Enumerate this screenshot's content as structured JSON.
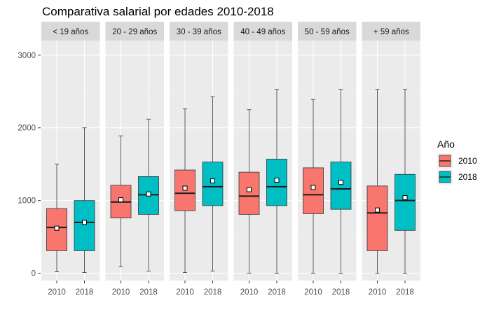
{
  "chart_data": {
    "type": "boxplot",
    "title": "Comparativa salarial por edades 2010-2018",
    "xlabel": "",
    "ylabel": "",
    "ylim": [
      -100,
      3200
    ],
    "y_ticks": [
      0,
      1000,
      2000,
      3000
    ],
    "grid": true,
    "legend": {
      "title": "Año",
      "position": "right",
      "entries": [
        {
          "label": "2010",
          "color": "#F8766D"
        },
        {
          "label": "2018",
          "color": "#00BFC4"
        }
      ]
    },
    "categories": [
      "2010",
      "2018"
    ],
    "panels": [
      {
        "label": "< 19 años",
        "boxes": [
          {
            "group": "2010",
            "min": 20,
            "q1": 310,
            "median": 630,
            "q3": 890,
            "max": 1500,
            "mean": 620
          },
          {
            "group": "2018",
            "min": 10,
            "q1": 310,
            "median": 700,
            "q3": 1000,
            "max": 2000,
            "mean": 700
          }
        ]
      },
      {
        "label": "20 - 29 años",
        "boxes": [
          {
            "group": "2010",
            "min": 90,
            "q1": 760,
            "median": 980,
            "q3": 1210,
            "max": 1890,
            "mean": 1010
          },
          {
            "group": "2018",
            "min": 30,
            "q1": 810,
            "median": 1080,
            "q3": 1330,
            "max": 2120,
            "mean": 1090
          }
        ]
      },
      {
        "label": "30 - 39 años",
        "boxes": [
          {
            "group": "2010",
            "min": 10,
            "q1": 860,
            "median": 1100,
            "q3": 1420,
            "max": 2260,
            "mean": 1170
          },
          {
            "group": "2018",
            "min": 30,
            "q1": 930,
            "median": 1190,
            "q3": 1530,
            "max": 2430,
            "mean": 1270
          }
        ]
      },
      {
        "label": "40 - 49 años",
        "boxes": [
          {
            "group": "2010",
            "min": 0,
            "q1": 810,
            "median": 1060,
            "q3": 1390,
            "max": 2250,
            "mean": 1150
          },
          {
            "group": "2018",
            "min": 0,
            "q1": 930,
            "median": 1190,
            "q3": 1570,
            "max": 2530,
            "mean": 1280
          }
        ]
      },
      {
        "label": "50 - 59 años",
        "boxes": [
          {
            "group": "2010",
            "min": 0,
            "q1": 820,
            "median": 1080,
            "q3": 1450,
            "max": 2390,
            "mean": 1180
          },
          {
            "group": "2018",
            "min": 0,
            "q1": 880,
            "median": 1160,
            "q3": 1530,
            "max": 2530,
            "mean": 1250
          }
        ]
      },
      {
        "label": "+ 59 años",
        "boxes": [
          {
            "group": "2010",
            "min": 0,
            "q1": 310,
            "median": 830,
            "q3": 1200,
            "max": 2530,
            "mean": 870
          },
          {
            "group": "2018",
            "min": 0,
            "q1": 590,
            "median": 1000,
            "q3": 1360,
            "max": 2530,
            "mean": 1040
          }
        ]
      }
    ]
  }
}
